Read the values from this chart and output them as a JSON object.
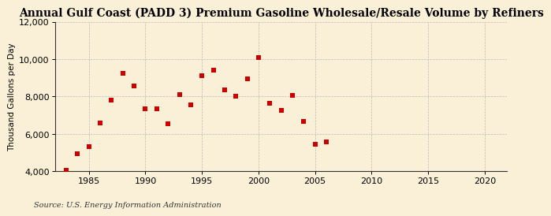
{
  "title": "Annual Gulf Coast (PADD 3) Premium Gasoline Wholesale/Resale Volume by Refiners",
  "ylabel": "Thousand Gallons per Day",
  "source": "Source: U.S. Energy Information Administration",
  "background_color": "#faefd7",
  "scatter_color": "#cc0000",
  "x_data": [
    1983,
    1984,
    1985,
    1986,
    1987,
    1988,
    1989,
    1990,
    1991,
    1992,
    1993,
    1994,
    1995,
    1996,
    1997,
    1998,
    1999,
    2000,
    2001,
    2002,
    2003,
    2004,
    2005,
    2006
  ],
  "y_data": [
    4050,
    4950,
    5300,
    6600,
    7800,
    9250,
    8550,
    7350,
    7350,
    6550,
    8100,
    7550,
    9100,
    9400,
    8350,
    8000,
    8950,
    10100,
    7650,
    7250,
    8050,
    6650,
    5450,
    5550
  ],
  "xlim": [
    1982,
    2022
  ],
  "ylim": [
    4000,
    12000
  ],
  "xticks": [
    1985,
    1990,
    1995,
    2000,
    2005,
    2010,
    2015,
    2020
  ],
  "yticks": [
    4000,
    6000,
    8000,
    10000,
    12000
  ],
  "marker_size": 18,
  "title_fontsize": 10,
  "label_fontsize": 7.5,
  "tick_fontsize": 8,
  "source_fontsize": 7
}
